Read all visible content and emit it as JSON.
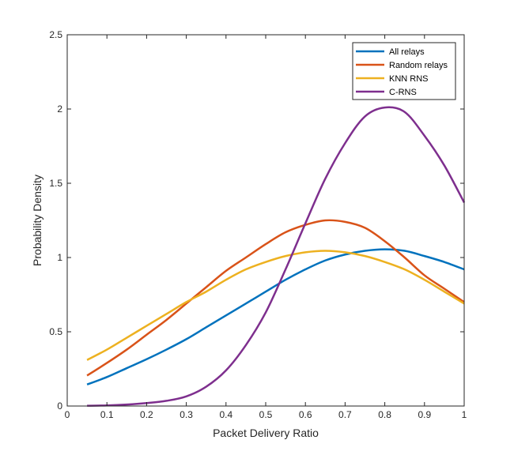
{
  "chart_data": {
    "type": "line",
    "title": "",
    "xlabel": "Packet Delivery Ratio",
    "ylabel": "Probability Density",
    "xlim": [
      0,
      1
    ],
    "ylim": [
      0,
      2.5
    ],
    "xticks": [
      0,
      0.1,
      0.2,
      0.3,
      0.4,
      0.5,
      0.6,
      0.7,
      0.8,
      0.9,
      1
    ],
    "xtick_labels": [
      "0",
      "0.1",
      "0.2",
      "0.3",
      "0.4",
      "0.5",
      "0.6",
      "0.7",
      "0.8",
      "0.9",
      "1"
    ],
    "yticks": [
      0,
      0.5,
      1,
      1.5,
      2,
      2.5
    ],
    "ytick_labels": [
      "0",
      "0.5",
      "1",
      "1.5",
      "2",
      "2.5"
    ],
    "grid": false,
    "legend_position": "top-right",
    "series": [
      {
        "name": "All relays",
        "color": "#0072BD",
        "x": [
          0.05,
          0.1,
          0.15,
          0.2,
          0.25,
          0.3,
          0.35,
          0.4,
          0.45,
          0.5,
          0.55,
          0.6,
          0.65,
          0.7,
          0.75,
          0.8,
          0.85,
          0.9,
          0.95,
          1.0
        ],
        "y": [
          0.145,
          0.195,
          0.255,
          0.315,
          0.38,
          0.45,
          0.53,
          0.61,
          0.69,
          0.77,
          0.85,
          0.92,
          0.98,
          1.02,
          1.045,
          1.055,
          1.045,
          1.01,
          0.97,
          0.92
        ]
      },
      {
        "name": "Random relays",
        "color": "#D95319",
        "x": [
          0.05,
          0.1,
          0.15,
          0.2,
          0.25,
          0.3,
          0.35,
          0.4,
          0.45,
          0.5,
          0.55,
          0.6,
          0.65,
          0.7,
          0.75,
          0.8,
          0.85,
          0.9,
          0.95,
          1.0
        ],
        "y": [
          0.205,
          0.29,
          0.38,
          0.48,
          0.58,
          0.69,
          0.8,
          0.91,
          1.0,
          1.09,
          1.17,
          1.22,
          1.25,
          1.24,
          1.2,
          1.11,
          1.0,
          0.88,
          0.79,
          0.7
        ]
      },
      {
        "name": "KNN RNS",
        "color": "#EDB120",
        "x": [
          0.05,
          0.1,
          0.15,
          0.2,
          0.25,
          0.3,
          0.35,
          0.4,
          0.45,
          0.5,
          0.55,
          0.6,
          0.65,
          0.7,
          0.75,
          0.8,
          0.85,
          0.9,
          0.95,
          1.0
        ],
        "y": [
          0.31,
          0.38,
          0.46,
          0.54,
          0.62,
          0.7,
          0.77,
          0.85,
          0.92,
          0.97,
          1.01,
          1.035,
          1.045,
          1.035,
          1.01,
          0.97,
          0.92,
          0.85,
          0.77,
          0.69
        ]
      },
      {
        "name": "C-RNS",
        "color": "#7E2F8E",
        "x": [
          0.05,
          0.1,
          0.15,
          0.2,
          0.25,
          0.3,
          0.35,
          0.4,
          0.45,
          0.5,
          0.55,
          0.6,
          0.65,
          0.7,
          0.75,
          0.8,
          0.85,
          0.9,
          0.95,
          1.0
        ],
        "y": [
          0.002,
          0.004,
          0.01,
          0.02,
          0.035,
          0.065,
          0.13,
          0.24,
          0.41,
          0.63,
          0.92,
          1.23,
          1.53,
          1.77,
          1.95,
          2.01,
          1.98,
          1.82,
          1.62,
          1.37
        ]
      }
    ]
  }
}
